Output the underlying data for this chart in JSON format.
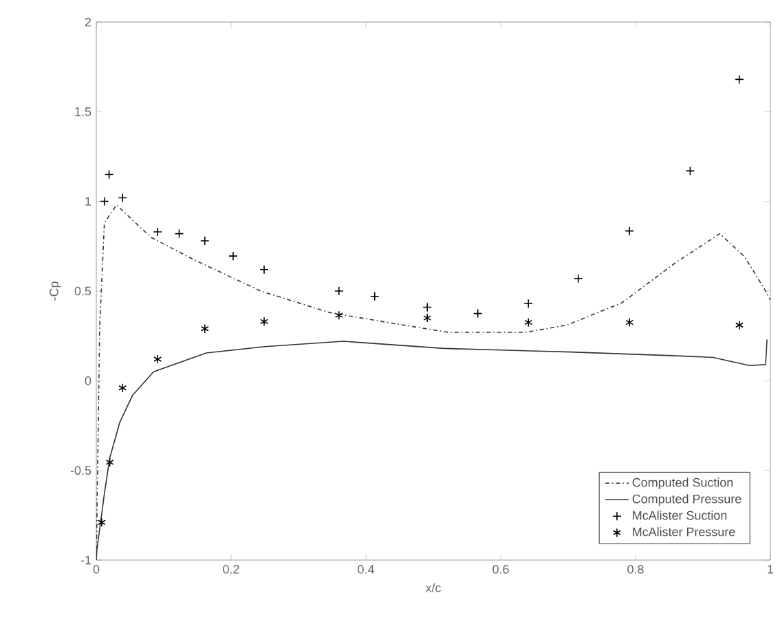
{
  "chart_data": {
    "type": "line",
    "xlabel": "x/c",
    "ylabel": "-Cp",
    "xlim": [
      0,
      1
    ],
    "ylim": [
      -1,
      2
    ],
    "xticks": [
      0,
      0.2,
      0.4,
      0.6,
      0.8,
      1
    ],
    "yticks": [
      -1,
      -0.5,
      0,
      0.5,
      1,
      1.5,
      2
    ],
    "grid": false,
    "legend": "bottom right",
    "series": [
      {
        "name": "Computed Suction",
        "line_style": "dashdot",
        "marker": "none",
        "color": "#333333",
        "x": [
          0,
          0.005,
          0.012,
          0.03,
          0.081,
          0.142,
          0.244,
          0.346,
          0.44,
          0.522,
          0.637,
          0.698,
          0.78,
          0.86,
          0.925,
          0.962,
          0.993,
          1
        ],
        "values": [
          -1,
          0.3,
          0.88,
          0.98,
          0.8,
          0.68,
          0.5,
          0.38,
          0.32,
          0.27,
          0.27,
          0.31,
          0.435,
          0.66,
          0.82,
          0.69,
          0.5,
          0.45
        ]
      },
      {
        "name": "Computed Pressure",
        "line_style": "solid",
        "marker": "none",
        "color": "#333333",
        "x": [
          0,
          0.001,
          0.012,
          0.02,
          0.035,
          0.054,
          0.085,
          0.163,
          0.25,
          0.366,
          0.515,
          0.704,
          0.854,
          0.915,
          0.969,
          0.993,
          0.995
        ],
        "values": [
          -1,
          -0.94,
          -0.63,
          -0.43,
          -0.23,
          -0.08,
          0.05,
          0.155,
          0.19,
          0.22,
          0.18,
          0.16,
          0.14,
          0.13,
          0.085,
          0.09,
          0.23
        ]
      },
      {
        "name": "McAlister Suction",
        "type": "scatter",
        "marker": "cross",
        "color": "#000000",
        "x": [
          0.012,
          0.019,
          0.039,
          0.091,
          0.123,
          0.161,
          0.203,
          0.249,
          0.36,
          0.413,
          0.491,
          0.566,
          0.641,
          0.715,
          0.791,
          0.881,
          0.954
        ],
        "values": [
          1.0,
          1.15,
          1.02,
          0.83,
          0.82,
          0.78,
          0.695,
          0.62,
          0.5,
          0.47,
          0.41,
          0.375,
          0.43,
          0.57,
          0.835,
          1.17,
          1.68
        ]
      },
      {
        "name": "McAlister Pressure",
        "type": "scatter",
        "color": "#000000",
        "x": [
          0.008,
          0.02,
          0.039,
          0.091,
          0.161,
          0.249,
          0.36,
          0.491,
          0.641,
          0.791,
          0.954
        ],
        "values": [
          -0.79,
          -0.455,
          -0.04,
          0.12,
          0.29,
          0.33,
          0.365,
          0.35,
          0.325,
          0.325,
          0.31
        ]
      }
    ]
  }
}
